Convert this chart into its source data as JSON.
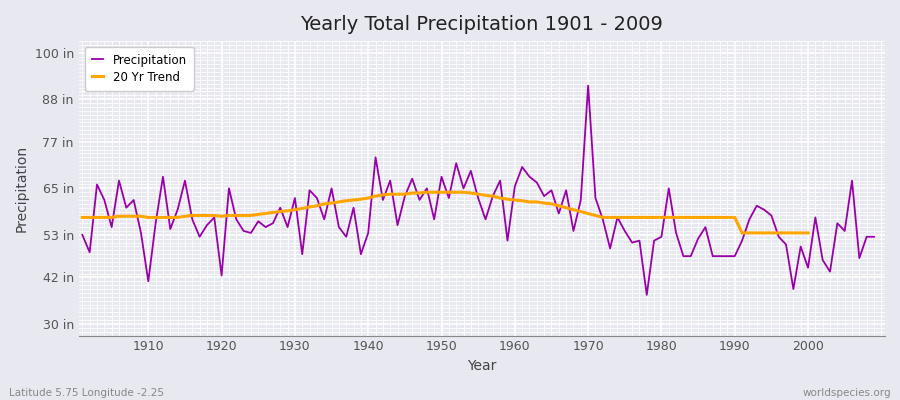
{
  "title": "Yearly Total Precipitation 1901 - 2009",
  "xlabel": "Year",
  "ylabel": "Precipitation",
  "subtitle_left": "Latitude 5.75 Longitude -2.25",
  "subtitle_right": "worldspecies.org",
  "ytick_labels": [
    "30 in",
    "42 in",
    "53 in",
    "65 in",
    "77 in",
    "88 in",
    "100 in"
  ],
  "ytick_values": [
    30,
    42,
    53,
    65,
    77,
    88,
    100
  ],
  "ylim": [
    27,
    103
  ],
  "xlim": [
    1900.5,
    2010.5
  ],
  "precip_color": "#9900AA",
  "trend_color": "#FFA500",
  "bg_color": "#e8e8f0",
  "plot_bg_color": "#e8e8f0",
  "grid_color": "#ffffff",
  "years": [
    1901,
    1902,
    1903,
    1904,
    1905,
    1906,
    1907,
    1908,
    1909,
    1910,
    1911,
    1912,
    1913,
    1914,
    1915,
    1916,
    1917,
    1918,
    1919,
    1920,
    1921,
    1922,
    1923,
    1924,
    1925,
    1926,
    1927,
    1928,
    1929,
    1930,
    1931,
    1932,
    1933,
    1934,
    1935,
    1936,
    1937,
    1938,
    1939,
    1940,
    1941,
    1942,
    1943,
    1944,
    1945,
    1946,
    1947,
    1948,
    1949,
    1950,
    1951,
    1952,
    1953,
    1954,
    1955,
    1956,
    1957,
    1958,
    1959,
    1960,
    1961,
    1962,
    1963,
    1964,
    1965,
    1966,
    1967,
    1968,
    1969,
    1970,
    1971,
    1972,
    1973,
    1974,
    1975,
    1976,
    1977,
    1978,
    1979,
    1980,
    1981,
    1982,
    1983,
    1984,
    1985,
    1986,
    1987,
    1988,
    1989,
    1990,
    1991,
    1992,
    1993,
    1994,
    1995,
    1996,
    1997,
    1998,
    1999,
    2000,
    2001,
    2002,
    2003,
    2004,
    2005,
    2006,
    2007,
    2008,
    2009
  ],
  "precip": [
    53.0,
    48.5,
    66.0,
    62.0,
    55.0,
    67.0,
    60.0,
    62.0,
    53.5,
    41.0,
    56.0,
    68.0,
    54.5,
    59.5,
    67.0,
    57.0,
    52.5,
    55.5,
    57.5,
    42.5,
    65.0,
    57.0,
    54.0,
    53.5,
    56.5,
    55.0,
    56.0,
    60.0,
    55.0,
    62.5,
    48.0,
    64.5,
    62.5,
    57.0,
    65.0,
    55.0,
    52.5,
    60.0,
    48.0,
    53.5,
    73.0,
    62.0,
    67.0,
    55.5,
    63.0,
    67.5,
    62.0,
    65.0,
    57.0,
    68.0,
    62.5,
    71.5,
    65.0,
    69.5,
    62.5,
    57.0,
    63.0,
    67.0,
    51.5,
    65.5,
    70.5,
    68.0,
    66.5,
    63.0,
    64.5,
    58.5,
    64.5,
    54.0,
    62.0,
    91.5,
    62.5,
    57.0,
    49.5,
    57.5,
    54.0,
    51.0,
    51.5,
    37.5,
    51.5,
    52.5,
    65.0,
    53.5,
    47.5,
    47.5,
    52.0,
    55.0,
    47.5,
    47.5,
    47.5,
    47.5,
    51.5,
    57.0,
    60.5,
    59.5,
    58.0,
    52.5,
    50.5,
    39.0,
    50.0,
    44.5,
    57.5,
    46.5,
    43.5,
    56.0,
    54.0,
    67.0,
    47.0,
    52.5,
    52.5
  ],
  "trend_years": [
    1901,
    1902,
    1903,
    1904,
    1905,
    1906,
    1907,
    1908,
    1909,
    1910,
    1911,
    1912,
    1913,
    1914,
    1915,
    1916,
    1917,
    1918,
    1919,
    1920,
    1921,
    1922,
    1923,
    1924,
    1925,
    1926,
    1927,
    1928,
    1929,
    1930,
    1931,
    1932,
    1933,
    1934,
    1935,
    1936,
    1937,
    1938,
    1939,
    1940,
    1941,
    1942,
    1943,
    1944,
    1945,
    1946,
    1947,
    1948,
    1949,
    1950,
    1951,
    1952,
    1953,
    1954,
    1955,
    1956,
    1957,
    1958,
    1959,
    1960,
    1961,
    1962,
    1963,
    1964,
    1965,
    1966,
    1967,
    1968,
    1969,
    1970,
    1971,
    1972,
    1973,
    1974,
    1975,
    1976,
    1977,
    1978,
    1979,
    1980,
    1981,
    1982,
    1983,
    1984,
    1985,
    1986,
    1987,
    1988,
    1989,
    1990,
    1991,
    1992,
    1993,
    1994,
    1995,
    1996,
    1997,
    1998,
    1999,
    2000
  ],
  "trend": [
    57.5,
    57.5,
    57.5,
    57.5,
    57.5,
    57.8,
    57.8,
    57.8,
    57.8,
    57.5,
    57.5,
    57.5,
    57.5,
    57.5,
    57.8,
    58.0,
    58.0,
    58.0,
    58.0,
    57.8,
    58.0,
    58.0,
    58.0,
    58.0,
    58.3,
    58.5,
    58.8,
    59.0,
    59.2,
    59.5,
    59.8,
    60.2,
    60.5,
    61.0,
    61.2,
    61.5,
    61.8,
    62.0,
    62.2,
    62.5,
    63.0,
    63.3,
    63.5,
    63.5,
    63.5,
    63.8,
    63.8,
    64.0,
    64.0,
    64.0,
    64.0,
    64.0,
    64.0,
    63.8,
    63.5,
    63.2,
    63.0,
    62.5,
    62.2,
    62.0,
    61.8,
    61.5,
    61.5,
    61.2,
    61.0,
    60.5,
    60.0,
    59.5,
    59.0,
    58.5,
    58.0,
    57.5,
    57.5,
    57.5,
    57.5,
    57.5,
    57.5,
    57.5,
    57.5,
    57.5,
    57.5,
    57.5,
    57.5,
    57.5,
    57.5,
    57.5,
    57.5,
    57.5,
    57.5,
    57.5,
    53.5,
    53.5,
    53.5,
    53.5,
    53.5,
    53.5,
    53.5,
    53.5,
    53.5,
    53.5
  ]
}
